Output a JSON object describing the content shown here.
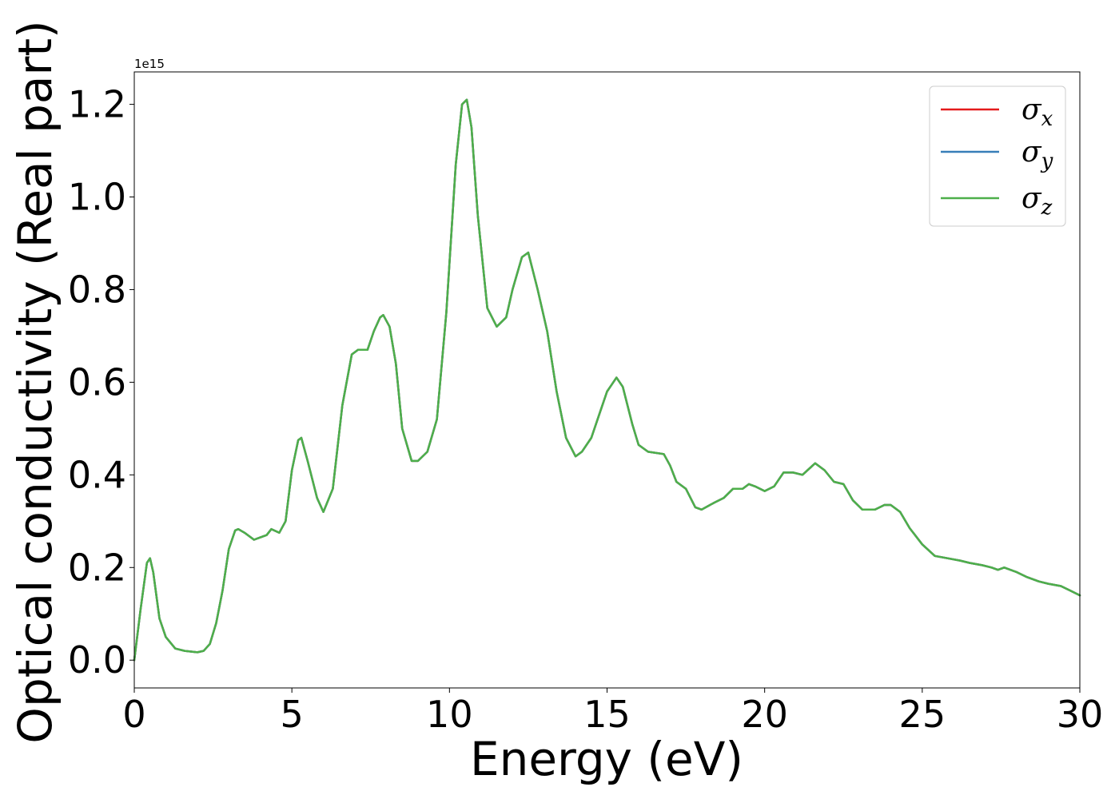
{
  "chart_data": {
    "type": "line",
    "xlabel": "Energy (eV)",
    "ylabel": "Optical conductivity (Real part)",
    "y_offset_label": "1e15",
    "xlim": [
      0,
      30
    ],
    "ylim": [
      -0.06,
      1.27
    ],
    "xticks": [
      0,
      5,
      10,
      15,
      20,
      25,
      30
    ],
    "xtick_labels": [
      "0",
      "5",
      "10",
      "15",
      "20",
      "25",
      "30"
    ],
    "yticks": [
      0.0,
      0.2,
      0.4,
      0.6,
      0.8,
      1.0,
      1.2
    ],
    "ytick_labels": [
      "0.0",
      "0.2",
      "0.4",
      "0.6",
      "0.8",
      "1.0",
      "1.2"
    ],
    "grid": false,
    "legend_position": "top-right",
    "x": [
      0,
      0.2,
      0.4,
      0.5,
      0.6,
      0.8,
      1.0,
      1.3,
      1.6,
      2.0,
      2.2,
      2.4,
      2.6,
      2.8,
      3.0,
      3.2,
      3.3,
      3.5,
      3.8,
      4.0,
      4.2,
      4.35,
      4.6,
      4.8,
      5.0,
      5.2,
      5.3,
      5.5,
      5.8,
      6.0,
      6.3,
      6.6,
      6.9,
      7.1,
      7.4,
      7.6,
      7.8,
      7.9,
      8.1,
      8.3,
      8.5,
      8.8,
      9.0,
      9.3,
      9.6,
      9.9,
      10.2,
      10.4,
      10.55,
      10.7,
      10.9,
      11.2,
      11.5,
      11.8,
      12.0,
      12.3,
      12.5,
      12.8,
      13.1,
      13.4,
      13.7,
      14.0,
      14.2,
      14.5,
      14.8,
      15.0,
      15.3,
      15.5,
      15.8,
      16.0,
      16.3,
      16.8,
      17.0,
      17.2,
      17.5,
      17.8,
      18.0,
      18.4,
      18.7,
      19.0,
      19.3,
      19.5,
      19.7,
      20.0,
      20.3,
      20.6,
      20.9,
      21.2,
      21.6,
      21.9,
      22.2,
      22.5,
      22.8,
      23.1,
      23.5,
      23.8,
      24.0,
      24.3,
      24.6,
      25.0,
      25.4,
      25.8,
      26.2,
      26.5,
      26.9,
      27.2,
      27.4,
      27.6,
      28.0,
      28.3,
      28.7,
      29.0,
      29.4,
      29.7,
      30.0
    ],
    "series": [
      {
        "name": "σx",
        "color": "#e41a1c",
        "values": [
          0.0,
          0.11,
          0.21,
          0.22,
          0.19,
          0.09,
          0.05,
          0.025,
          0.02,
          0.017,
          0.02,
          0.035,
          0.08,
          0.15,
          0.24,
          0.28,
          0.283,
          0.275,
          0.26,
          0.265,
          0.27,
          0.283,
          0.275,
          0.3,
          0.41,
          0.475,
          0.48,
          0.43,
          0.35,
          0.32,
          0.37,
          0.55,
          0.66,
          0.67,
          0.67,
          0.71,
          0.74,
          0.745,
          0.72,
          0.64,
          0.5,
          0.43,
          0.43,
          0.45,
          0.52,
          0.75,
          1.07,
          1.2,
          1.21,
          1.15,
          0.96,
          0.76,
          0.72,
          0.74,
          0.8,
          0.87,
          0.88,
          0.8,
          0.71,
          0.58,
          0.48,
          0.44,
          0.45,
          0.48,
          0.54,
          0.58,
          0.61,
          0.59,
          0.51,
          0.465,
          0.45,
          0.445,
          0.42,
          0.385,
          0.37,
          0.33,
          0.325,
          0.34,
          0.35,
          0.37,
          0.37,
          0.38,
          0.375,
          0.365,
          0.375,
          0.405,
          0.405,
          0.4,
          0.425,
          0.41,
          0.385,
          0.38,
          0.345,
          0.325,
          0.325,
          0.335,
          0.335,
          0.32,
          0.285,
          0.25,
          0.225,
          0.22,
          0.215,
          0.21,
          0.205,
          0.2,
          0.195,
          0.2,
          0.19,
          0.18,
          0.17,
          0.165,
          0.16,
          0.15,
          0.14
        ]
      },
      {
        "name": "σy",
        "color": "#377eb8",
        "values": [
          0.0,
          0.11,
          0.21,
          0.22,
          0.19,
          0.09,
          0.05,
          0.025,
          0.02,
          0.017,
          0.02,
          0.035,
          0.08,
          0.15,
          0.24,
          0.28,
          0.283,
          0.275,
          0.26,
          0.265,
          0.27,
          0.283,
          0.275,
          0.3,
          0.41,
          0.475,
          0.48,
          0.43,
          0.35,
          0.32,
          0.37,
          0.55,
          0.66,
          0.67,
          0.67,
          0.71,
          0.74,
          0.745,
          0.72,
          0.64,
          0.5,
          0.43,
          0.43,
          0.45,
          0.52,
          0.75,
          1.07,
          1.2,
          1.21,
          1.15,
          0.96,
          0.76,
          0.72,
          0.74,
          0.8,
          0.87,
          0.88,
          0.8,
          0.71,
          0.58,
          0.48,
          0.44,
          0.45,
          0.48,
          0.54,
          0.58,
          0.61,
          0.59,
          0.51,
          0.465,
          0.45,
          0.445,
          0.42,
          0.385,
          0.37,
          0.33,
          0.325,
          0.34,
          0.35,
          0.37,
          0.37,
          0.38,
          0.375,
          0.365,
          0.375,
          0.405,
          0.405,
          0.4,
          0.425,
          0.41,
          0.385,
          0.38,
          0.345,
          0.325,
          0.325,
          0.335,
          0.335,
          0.32,
          0.285,
          0.25,
          0.225,
          0.22,
          0.215,
          0.21,
          0.205,
          0.2,
          0.195,
          0.2,
          0.19,
          0.18,
          0.17,
          0.165,
          0.16,
          0.15,
          0.14
        ]
      },
      {
        "name": "σz",
        "color": "#4daf4a",
        "values": [
          0.0,
          0.11,
          0.21,
          0.22,
          0.19,
          0.09,
          0.05,
          0.025,
          0.02,
          0.017,
          0.02,
          0.035,
          0.08,
          0.15,
          0.24,
          0.28,
          0.283,
          0.275,
          0.26,
          0.265,
          0.27,
          0.283,
          0.275,
          0.3,
          0.41,
          0.475,
          0.48,
          0.43,
          0.35,
          0.32,
          0.37,
          0.55,
          0.66,
          0.67,
          0.67,
          0.71,
          0.74,
          0.745,
          0.72,
          0.64,
          0.5,
          0.43,
          0.43,
          0.45,
          0.52,
          0.75,
          1.07,
          1.2,
          1.21,
          1.15,
          0.96,
          0.76,
          0.72,
          0.74,
          0.8,
          0.87,
          0.88,
          0.8,
          0.71,
          0.58,
          0.48,
          0.44,
          0.45,
          0.48,
          0.54,
          0.58,
          0.61,
          0.59,
          0.51,
          0.465,
          0.45,
          0.445,
          0.42,
          0.385,
          0.37,
          0.33,
          0.325,
          0.34,
          0.35,
          0.37,
          0.37,
          0.38,
          0.375,
          0.365,
          0.375,
          0.405,
          0.405,
          0.4,
          0.425,
          0.41,
          0.385,
          0.38,
          0.345,
          0.325,
          0.325,
          0.335,
          0.335,
          0.32,
          0.285,
          0.25,
          0.225,
          0.22,
          0.215,
          0.21,
          0.205,
          0.2,
          0.195,
          0.2,
          0.19,
          0.18,
          0.17,
          0.165,
          0.16,
          0.15,
          0.14
        ]
      }
    ],
    "legend": [
      {
        "symbol": "σ",
        "sub": "x",
        "color": "#e41a1c"
      },
      {
        "symbol": "σ",
        "sub": "y",
        "color": "#377eb8"
      },
      {
        "symbol": "σ",
        "sub": "z",
        "color": "#4daf4a"
      }
    ]
  }
}
